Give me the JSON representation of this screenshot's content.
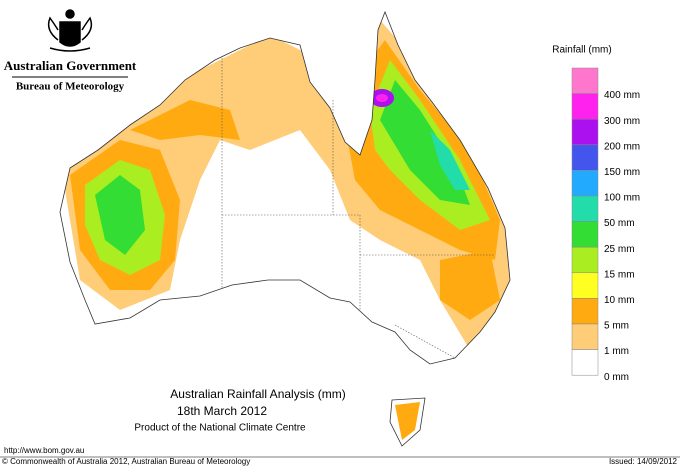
{
  "header": {
    "government": "Australian Government",
    "agency": "Bureau of Meteorology"
  },
  "legend": {
    "title": "Rainfall (mm)",
    "items": [
      {
        "label": "400 mm",
        "color": "#ff77cc"
      },
      {
        "label": "300 mm",
        "color": "#ff22ee"
      },
      {
        "label": "200 mm",
        "color": "#aa11ee"
      },
      {
        "label": "150 mm",
        "color": "#4455ee"
      },
      {
        "label": "100 mm",
        "color": "#22aaff"
      },
      {
        "label": "50 mm",
        "color": "#22ddaa"
      },
      {
        "label": "25 mm",
        "color": "#33dd33"
      },
      {
        "label": "15 mm",
        "color": "#aaee22"
      },
      {
        "label": "10 mm",
        "color": "#ffff22"
      },
      {
        "label": "5 mm",
        "color": "#ffaa11"
      },
      {
        "label": "1 mm",
        "color": "#ffcc77"
      },
      {
        "label": "0 mm",
        "color": "#ffffff"
      }
    ]
  },
  "map": {
    "title": "Australian Rainfall Analysis (mm)",
    "date": "18th March 2012",
    "credit": "Product of the National Climate Centre"
  },
  "footer": {
    "url": "http://www.bom.gov.au",
    "copyright": "© Commonwealth of Australia 2012, Australian Bureau of Meteorology",
    "issued": "Issued: 14/09/2012"
  }
}
